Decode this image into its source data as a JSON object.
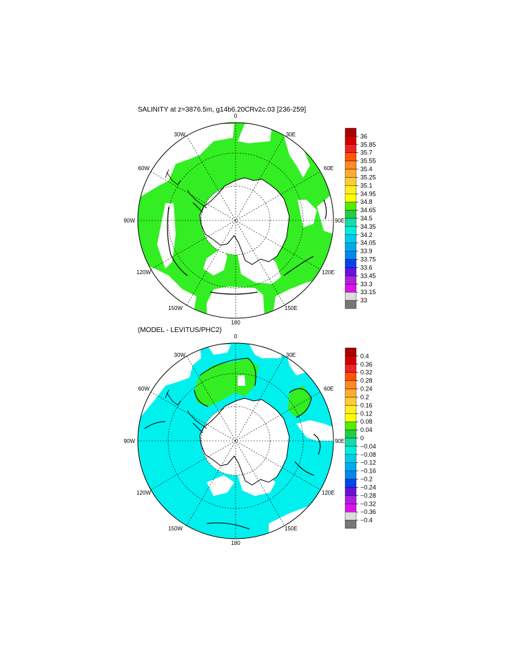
{
  "panels": [
    {
      "title": "SALINITY at z=3876.5m, g14b6.20CRv2c.03 [236-259]",
      "colorbar": {
        "labels": [
          "36",
          "35.85",
          "35.7",
          "35.55",
          "35.4",
          "35.25",
          "35.1",
          "34.95",
          "34.8",
          "34.65",
          "34.5",
          "34.35",
          "34.2",
          "34.05",
          "33.9",
          "33.75",
          "33.6",
          "33.45",
          "33.3",
          "33.15",
          "33"
        ]
      },
      "fill_color": "#33ee22"
    },
    {
      "title": "(MODEL - LEVITUS/PHC2)",
      "colorbar": {
        "labels": [
          "0.4",
          "0.36",
          "0.32",
          "0.28",
          "0.24",
          "0.2",
          "0.16",
          "0.12",
          "0.08",
          "0.04",
          "0",
          "−0.04",
          "−0.08",
          "−0.12",
          "−0.16",
          "−0.2",
          "−0.24",
          "−0.28",
          "−0.32",
          "−0.36",
          "−0.4"
        ]
      },
      "fill_color": "#00f0ee"
    }
  ],
  "lon_labels": [
    "0",
    "30E",
    "60E",
    "90E",
    "120E",
    "150E",
    "180",
    "150W",
    "120W",
    "90W",
    "60W",
    "30W"
  ],
  "colors": [
    "#aa0000",
    "#d40000",
    "#ee2222",
    "#ff5500",
    "#ff8822",
    "#ffaa33",
    "#ffcc33",
    "#ffee22",
    "#ffff00",
    "#55ee00",
    "#22cc44",
    "#11ddaa",
    "#00eedd",
    "#00ccee",
    "#00aaee",
    "#0088ee",
    "#0044ee",
    "#6611dd",
    "#aa22dd",
    "#dd11ee",
    "#dddddd",
    "#777777"
  ]
}
